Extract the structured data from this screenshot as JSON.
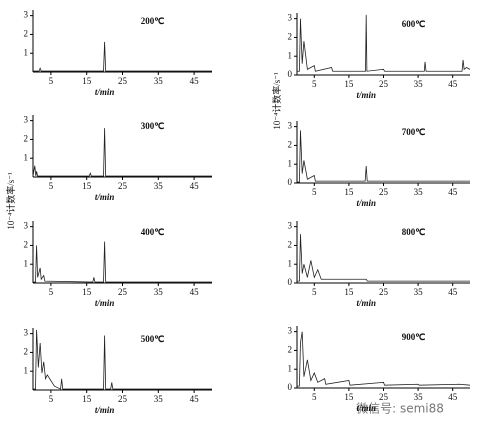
{
  "chart_data": [
    {
      "type": "line",
      "title": "200℃",
      "xlabel": "t/min",
      "x": [
        0,
        1.7,
        2,
        2.3,
        19.7,
        20,
        20.3,
        50
      ],
      "values": [
        0.05,
        0.05,
        0.2,
        0.05,
        0.05,
        1.6,
        0.05,
        0.05
      ],
      "color": "#222",
      "xlim": [
        0,
        50
      ],
      "ylim": [
        0,
        3.3
      ],
      "xticks": [
        5,
        15,
        25,
        35,
        45
      ],
      "yticks": [
        1,
        2,
        3
      ]
    },
    {
      "type": "line",
      "title": "300℃",
      "xlabel": "t/min",
      "x": [
        0,
        0.5,
        0.8,
        1,
        1.3,
        15.7,
        16,
        16.3,
        19.7,
        20,
        20.3,
        50
      ],
      "values": [
        0.05,
        0.6,
        0.05,
        0.3,
        0.05,
        0.05,
        0.2,
        0.05,
        0.05,
        2.6,
        0.05,
        0.05
      ],
      "color": "#222",
      "xlim": [
        0,
        50
      ],
      "ylim": [
        0,
        3.3
      ],
      "xticks": [
        5,
        15,
        25,
        35,
        45
      ],
      "yticks": [
        1,
        2,
        3
      ]
    },
    {
      "type": "line",
      "title": "400℃",
      "xlabel": "t/min",
      "ylabel": "10⁻⁴计数率/s⁻¹",
      "x": [
        0,
        0.7,
        1,
        1.3,
        2,
        2.3,
        3,
        3.3,
        16.7,
        17,
        17.3,
        19.7,
        20,
        20.3,
        50
      ],
      "values": [
        0.05,
        0.05,
        2.0,
        0.3,
        0.8,
        0.2,
        0.4,
        0.1,
        0.05,
        0.3,
        0.05,
        0.05,
        2.2,
        0.05,
        0.05
      ],
      "color": "#222",
      "xlim": [
        0,
        50
      ],
      "ylim": [
        0,
        3.3
      ],
      "xticks": [
        5,
        15,
        25,
        35,
        45
      ],
      "yticks": [
        1,
        2,
        3
      ]
    },
    {
      "type": "line",
      "title": "500℃",
      "xlabel": "t/min",
      "x": [
        0,
        0.7,
        1,
        1.5,
        2,
        2.5,
        3,
        3.5,
        4,
        5,
        6,
        7.7,
        8,
        8.3,
        19.7,
        20,
        20.3,
        21.7,
        22,
        22.3,
        50
      ],
      "values": [
        0.05,
        0.05,
        3.2,
        1.2,
        2.5,
        0.9,
        1.5,
        0.6,
        0.8,
        0.5,
        0.2,
        0.05,
        0.6,
        0.05,
        0.05,
        2.9,
        0.05,
        0.05,
        0.4,
        0.05,
        0.05
      ],
      "color": "#222",
      "xlim": [
        0,
        50
      ],
      "ylim": [
        0,
        3.3
      ],
      "xticks": [
        5,
        15,
        25,
        35,
        45
      ],
      "yticks": [
        1,
        2,
        3
      ]
    },
    {
      "type": "line",
      "title": "600℃",
      "xlabel": "t/min",
      "x": [
        0,
        0.7,
        1,
        1.5,
        2,
        3,
        5,
        5.3,
        10,
        10.3,
        19.8,
        20,
        20.2,
        25,
        25.3,
        36.8,
        37,
        37.3,
        47.7,
        48,
        48.3,
        49,
        50
      ],
      "values": [
        0.2,
        0.2,
        3.0,
        0.6,
        1.8,
        0.3,
        0.5,
        0.2,
        0.4,
        0.2,
        0.2,
        3.2,
        0.2,
        0.3,
        0.2,
        0.2,
        0.7,
        0.2,
        0.2,
        0.8,
        0.3,
        0.4,
        0.3
      ],
      "color": "#222",
      "xlim": [
        0,
        50
      ],
      "ylim": [
        0,
        3.3
      ],
      "xticks": [
        5,
        15,
        25,
        35,
        45
      ],
      "yticks": [
        0,
        1,
        2,
        3
      ]
    },
    {
      "type": "line",
      "title": "700℃",
      "xlabel": "t/min",
      "ylabel": "10⁻⁴计数率/s⁻¹",
      "x": [
        0,
        0.7,
        1,
        1.5,
        2,
        3,
        5,
        5.3,
        19.7,
        20,
        20.3,
        50
      ],
      "values": [
        0.05,
        0.05,
        2.8,
        0.5,
        1.2,
        0.2,
        0.4,
        0.1,
        0.1,
        0.9,
        0.1,
        0.1
      ],
      "color": "#222",
      "xlim": [
        0,
        50
      ],
      "ylim": [
        0,
        3.3
      ],
      "xticks": [
        5,
        15,
        25,
        35,
        45
      ],
      "yticks": [
        0,
        1,
        2,
        3
      ]
    },
    {
      "type": "line",
      "title": "800℃",
      "xlabel": "t/min",
      "x": [
        0,
        0.7,
        1,
        1.5,
        2,
        3,
        4,
        5,
        6,
        7,
        20,
        20.3,
        50
      ],
      "values": [
        0.1,
        0.1,
        2.6,
        0.5,
        1.0,
        0.3,
        1.2,
        0.3,
        0.7,
        0.2,
        0.2,
        0.1,
        0.1
      ],
      "color": "#222",
      "xlim": [
        0,
        50
      ],
      "ylim": [
        0,
        3.3
      ],
      "xticks": [
        5,
        15,
        25,
        35,
        45
      ],
      "yticks": [
        0,
        1,
        2,
        3
      ]
    },
    {
      "type": "line",
      "title": "900℃",
      "xlabel": "t/min",
      "x": [
        0,
        0.7,
        1,
        1.5,
        2,
        3,
        4,
        5,
        6,
        8,
        8.3,
        15,
        15.3,
        25,
        25.3,
        35,
        35.3,
        47,
        50
      ],
      "values": [
        0.1,
        0.1,
        2.4,
        3.0,
        0.6,
        1.5,
        0.4,
        0.8,
        0.3,
        0.5,
        0.2,
        0.4,
        0.15,
        0.3,
        0.15,
        0.2,
        0.15,
        0.2,
        0.15
      ],
      "color": "#222",
      "xlim": [
        0,
        50
      ],
      "ylim": [
        0,
        3.3
      ],
      "xticks": [
        5,
        15,
        25,
        35,
        45
      ],
      "yticks": [
        0,
        1,
        2,
        3
      ]
    }
  ],
  "watermark": "微信号: semi88"
}
